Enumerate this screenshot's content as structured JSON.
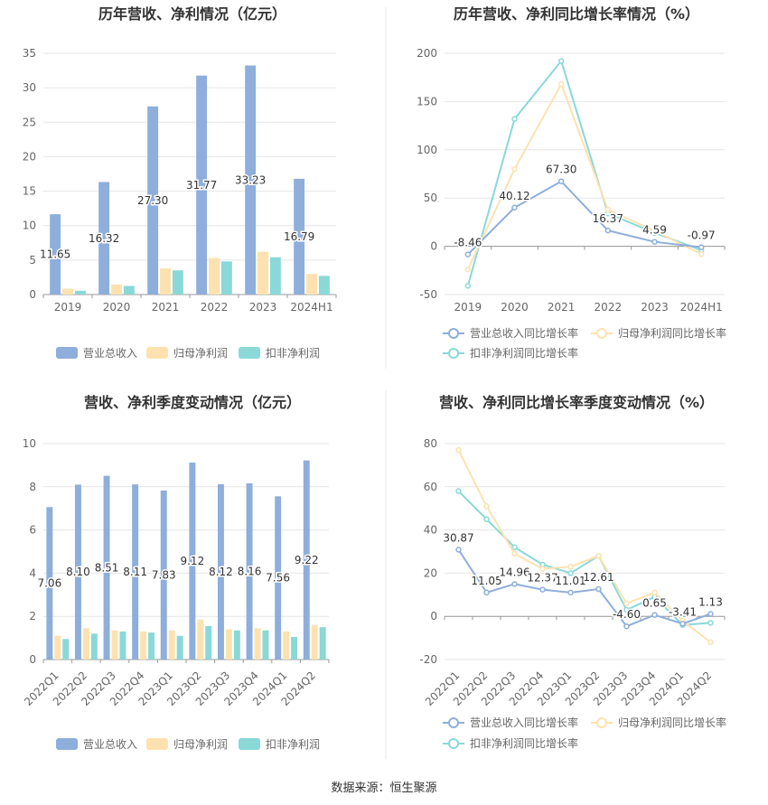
{
  "colors": {
    "revenue": "#8eaedb",
    "net_profit": "#fde2b0",
    "deducted_profit": "#8ad8d8",
    "grid": "#e6e6e6",
    "text": "#333333",
    "axis_text": "#666666",
    "divider": "#e8e8e8"
  },
  "chart_data": [
    {
      "type": "bar",
      "title": "历年营收、净利情况（亿元）",
      "categories": [
        "2019",
        "2020",
        "2021",
        "2022",
        "2023",
        "2024H1"
      ],
      "series": [
        {
          "name": "营业总收入",
          "values": [
            11.65,
            16.32,
            27.3,
            31.77,
            33.23,
            16.79
          ],
          "labels": [
            "11.65",
            "16.32",
            "27.30",
            "31.77",
            "33.23",
            "16.79"
          ]
        },
        {
          "name": "归母净利润",
          "values": [
            0.85,
            1.45,
            3.8,
            5.3,
            6.2,
            3.0
          ]
        },
        {
          "name": "扣非净利润",
          "values": [
            0.55,
            1.25,
            3.5,
            4.8,
            5.4,
            2.7
          ]
        }
      ],
      "yticks": [
        "0",
        "5",
        "10",
        "15",
        "20",
        "25",
        "30",
        "35"
      ],
      "ylim": [
        0,
        35
      ],
      "grid": true,
      "legend": "bottom"
    },
    {
      "type": "line",
      "title": "历年营收、净利同比增长率情况（%）",
      "categories": [
        "2019",
        "2020",
        "2021",
        "2022",
        "2023",
        "2024H1"
      ],
      "series": [
        {
          "name": "营业总收入同比增长率",
          "values": [
            -8.46,
            40.12,
            67.3,
            16.37,
            4.59,
            -0.97
          ],
          "labels": [
            "-8.46",
            "40.12",
            "67.30",
            "16.37",
            "4.59",
            "-0.97"
          ]
        },
        {
          "name": "归母净利润同比增长率",
          "values": [
            -24,
            80,
            168,
            38,
            16,
            -8
          ]
        },
        {
          "name": "扣非净利润同比增长率",
          "values": [
            -41,
            132,
            192,
            34,
            14,
            -4
          ]
        }
      ],
      "yticks": [
        "-50",
        "0",
        "50",
        "100",
        "150",
        "200"
      ],
      "ylim": [
        -50,
        200
      ],
      "grid": true,
      "legend": "bottom"
    },
    {
      "type": "bar",
      "title": "营收、净利季度变动情况（亿元）",
      "categories": [
        "2022Q1",
        "2022Q2",
        "2022Q3",
        "2022Q4",
        "2023Q1",
        "2023Q2",
        "2023Q3",
        "2023Q4",
        "2024Q1",
        "2024Q2"
      ],
      "series": [
        {
          "name": "营业总收入",
          "values": [
            7.06,
            8.1,
            8.51,
            8.11,
            7.83,
            9.12,
            8.12,
            8.16,
            7.56,
            9.22
          ],
          "labels": [
            "7.06",
            "8.10",
            "8.51",
            "8.11",
            "7.83",
            "9.12",
            "8.12",
            "8.16",
            "7.56",
            "9.22"
          ]
        },
        {
          "name": "归母净利润",
          "values": [
            1.1,
            1.45,
            1.35,
            1.3,
            1.35,
            1.85,
            1.4,
            1.45,
            1.3,
            1.6
          ]
        },
        {
          "name": "扣非净利润",
          "values": [
            0.95,
            1.2,
            1.3,
            1.25,
            1.1,
            1.55,
            1.35,
            1.35,
            1.05,
            1.5
          ]
        }
      ],
      "yticks": [
        "0",
        "2",
        "4",
        "6",
        "8",
        "10"
      ],
      "ylim": [
        0,
        10
      ],
      "grid": true,
      "legend": "bottom"
    },
    {
      "type": "line",
      "title": "营收、净利同比增长率季度变动情况（%）",
      "categories": [
        "2022Q1",
        "2022Q2",
        "2022Q3",
        "2022Q4",
        "2023Q1",
        "2023Q2",
        "2023Q3",
        "2023Q4",
        "2024Q1",
        "2024Q2"
      ],
      "series": [
        {
          "name": "营业总收入同比增长率",
          "values": [
            30.87,
            11.05,
            14.96,
            12.37,
            11.01,
            12.61,
            -4.6,
            0.65,
            -3.41,
            1.13
          ],
          "labels": [
            "30.87",
            "11.05",
            "14.96",
            "12.37",
            "11.01",
            "12.61",
            "-4.60",
            "0.65",
            "-3.41",
            "1.13"
          ]
        },
        {
          "name": "归母净利润同比增长率",
          "values": [
            77,
            51,
            29,
            22,
            23,
            28,
            6,
            11,
            -2,
            -12
          ]
        },
        {
          "name": "扣非净利润同比增长率",
          "values": [
            58,
            45,
            32,
            24,
            20,
            28,
            3,
            9,
            -4,
            -3
          ]
        }
      ],
      "yticks": [
        "-20",
        "0",
        "20",
        "40",
        "60",
        "80"
      ],
      "ylim": [
        -20,
        80
      ],
      "grid": true,
      "legend": "bottom"
    }
  ],
  "footer": {
    "source": "数据来源：恒生聚源"
  }
}
